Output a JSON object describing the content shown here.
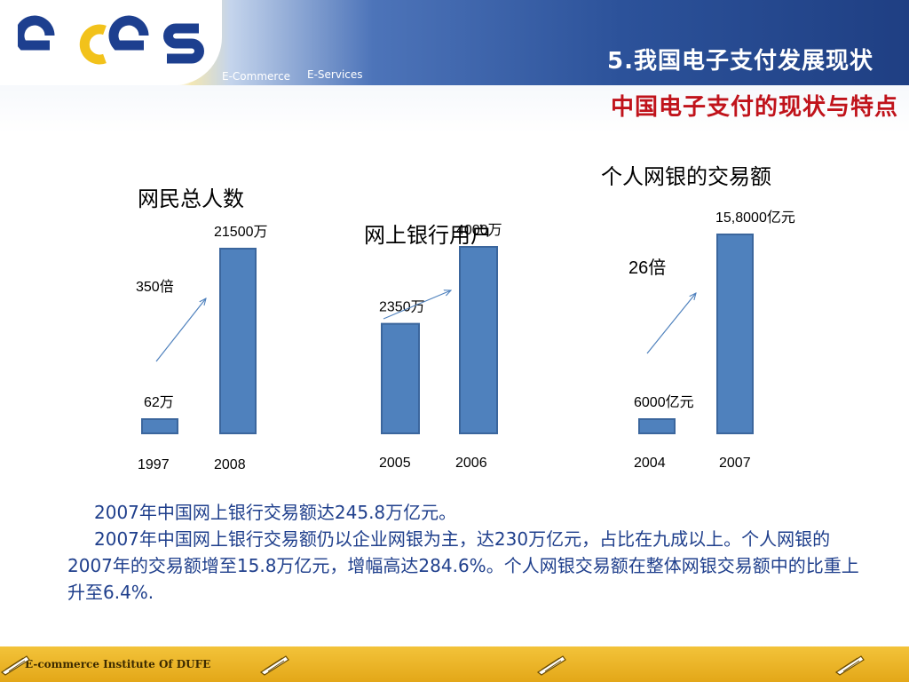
{
  "header": {
    "logo_text": "eces",
    "tagline_1": "E-Commerce",
    "tagline_2": "E-Services",
    "title": "5.我国电子支付发展现状",
    "subtitle": "中国电子支付的现状与特点"
  },
  "colors": {
    "bar": "#4f81bd",
    "title": "#ffffff",
    "subtitle": "#c0131b",
    "body_text": "#1f3f8c"
  },
  "chart_data": [
    {
      "type": "bar",
      "title": "网民总人数",
      "categories": [
        "1997",
        "2008"
      ],
      "values": [
        62,
        21500
      ],
      "value_labels": [
        "62万",
        "21500万"
      ],
      "unit": "万",
      "annotation": "350倍"
    },
    {
      "type": "bar",
      "title": "网上银行用户",
      "categories": [
        "2005",
        "2006"
      ],
      "values": [
        2350,
        4000
      ],
      "value_labels": [
        "2350万",
        "4000万"
      ],
      "unit": "万",
      "annotation": ""
    },
    {
      "type": "bar",
      "title": "个人网银的交易额",
      "categories": [
        "2004",
        "2007"
      ],
      "values": [
        6000,
        158000
      ],
      "value_labels": [
        "6000亿元",
        "15,8000亿元"
      ],
      "unit": "亿元",
      "annotation": "26倍"
    }
  ],
  "body": {
    "paragraph_1": "2007年中国网上银行交易额达245.8万亿元。",
    "paragraph_2": "2007年中国网上银行交易额仍以企业网银为主，达230万亿元，占比在九成以上。个人网银的2007年的交易额增至15.8万亿元，增幅高达284.6%。个人网银交易额在整体网银交易额中的比重上升至6.4%."
  },
  "footer": {
    "text": "E-commerce Institute Of DUFE",
    "icon": "pen-icon"
  }
}
